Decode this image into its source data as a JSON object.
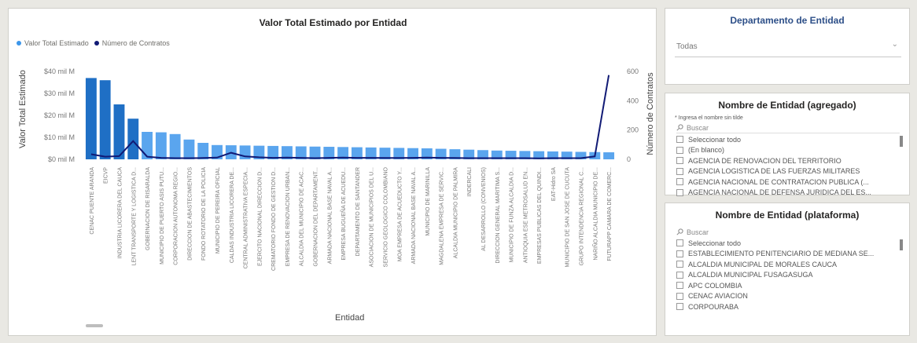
{
  "colors": {
    "bar_light": "#5aa5ee",
    "bar_dark": "#1f6fc5",
    "line": "#111a75",
    "title": "#2d4f88"
  },
  "chart_data": {
    "type": "bar",
    "title": "Valor Total Estimado por Entidad",
    "xlabel": "Entidad",
    "ylabel": "Valor Total Estimado",
    "ylabel_right": "Número de Contratos",
    "legend": [
      {
        "name": "Valor Total Estimado",
        "color": "#3c96ea"
      },
      {
        "name": "Número de Contratos",
        "color": "#111a75"
      }
    ],
    "ylim": [
      0,
      40
    ],
    "y_ticks": [
      {
        "v": 0,
        "label": "$0 mil M"
      },
      {
        "v": 10,
        "label": "$10 mil M"
      },
      {
        "v": 20,
        "label": "$20 mil M"
      },
      {
        "v": 30,
        "label": "$30 mil M"
      },
      {
        "v": 40,
        "label": "$40 mil M"
      }
    ],
    "y2lim": [
      0,
      600
    ],
    "y2_ticks": [
      {
        "v": 0,
        "label": "0"
      },
      {
        "v": 200,
        "label": "200"
      },
      {
        "v": 400,
        "label": "400"
      },
      {
        "v": 600,
        "label": "600"
      }
    ],
    "categories": [
      "CENAC PUENTE ARANDA",
      "EICVP",
      "INDUSTRIA LICORERA DEL CAUCA",
      "LENT TRANSPORTE Y LOGISTICA D...",
      "GOBERNACION DE RISARALDA",
      "MUNICIPIO DE PUERTO ASIS PUTU...",
      "CORPORACION AUTONOMA REGIO...",
      "DIRECCION DE ABASTECIMIENTOS",
      "FONDO ROTATORIO DE LA POLICIA",
      "MUNICIPIO DE PEREIRA OFICIAL",
      "CALDAS INDUSTRIA LICORERA DE...",
      "CENTRAL ADMINISTRATIVA ESPECIA...",
      "EJERCITO NACIONAL DIRECCION D...",
      "CREMATORIO FONDO DE GESTION D...",
      "EMPRESA DE RENOVACION URBAN...",
      "ALCALDIA DEL MUNICIPIO DE ACAC...",
      "GOBERNACION DEL DEPARTAMENT...",
      "ARMADA NACIONAL BASE NAVAL A...",
      "EMPRESA BUGUEÑA DE ACUEDU...",
      "DEPARTAMENTO DE SANTANDER",
      "ASOCIACION DE MUNICIPIOS DEL U...",
      "SERVICIO GEOLOGICO COLOMBIANO",
      "MOA EMPRESA DE ACUEDUCTO Y...",
      "ARMADA NACIONAL BASE NAVAL A...",
      "MUNICIPIO DE MARINILLA",
      "MAGDALENA EMPRESA DE SERVIC...",
      "ALCALDIA MUNICIPIO DE PALMIRA",
      "INDERCALI",
      "AL DESARROLLO (CONVENIOS)",
      "DIRECCION GENERAL MARITIMA S...",
      "MUNICIPIO DE FUNZA ALCALDIA D...",
      "ANTIOQUIA ESE METROSALUD EN...",
      "EMPRESAS PUBLICAS DEL QUINDI...",
      "EAT-Hidro SA",
      "MUNICIPIO DE SAN JOSE DE CUCUTA",
      "GRUPO INTENDENCIA REGIONAL C...",
      "NARIÑO ALCALDIA MUNICIPIO DE...",
      "FUTURAPP CAMARA DE COMERC..."
    ],
    "values": [
      37,
      36,
      25,
      18.5,
      12.5,
      12.3,
      11.5,
      9,
      7.5,
      6.5,
      6.4,
      6.3,
      6.2,
      6.1,
      6.0,
      5.9,
      5.8,
      5.7,
      5.6,
      5.5,
      5.4,
      5.3,
      5.2,
      5.1,
      5.0,
      4.8,
      4.6,
      4.4,
      4.2,
      4.0,
      3.9,
      3.8,
      3.7,
      3.6,
      3.5,
      3.4,
      3.3,
      3.2
    ],
    "dark_bars": 4,
    "series2_name": "Número de Contratos",
    "series2": [
      35,
      18,
      22,
      125,
      18,
      10,
      8,
      8,
      9,
      12,
      45,
      20,
      14,
      10,
      12,
      10,
      8,
      10,
      12,
      10,
      10,
      9,
      9,
      10,
      12,
      10,
      9,
      8,
      8,
      8,
      8,
      8,
      7,
      8,
      8,
      8,
      20,
      575
    ]
  },
  "slicer_dept": {
    "title": "Departamento de Entidad",
    "value": "Todas"
  },
  "slicer_agg": {
    "title": "Nombre de Entidad (agregado)",
    "hint": "* Ingresa el nombre sin tilde",
    "search_placeholder": "Buscar",
    "items": [
      "Seleccionar todo",
      "(En blanco)",
      "AGENCIA DE RENOVACION DEL TERRITORIO",
      "AGENCIA LOGISTICA DE LAS FUERZAS MILITARES",
      "AGENCIA NACIONAL DE CONTRATACION PUBLICA (...",
      "AGENCIA NACIONAL DE DEFENSA JURIDICA DEL ES..."
    ]
  },
  "slicer_plat": {
    "title": "Nombre de Entidad (plataforma)",
    "search_placeholder": "Buscar",
    "items": [
      "Seleccionar todo",
      "ESTABLECIMIENTO PENITENCIARIO DE MEDIANA SE...",
      "ALCALDIA MUNICIPAL DE MORALES CAUCA",
      "ALCALDIA MUNICIPAL FUSAGASUGA",
      "APC COLOMBIA",
      "CENAC AVIACION",
      "CORPOURABA"
    ]
  }
}
